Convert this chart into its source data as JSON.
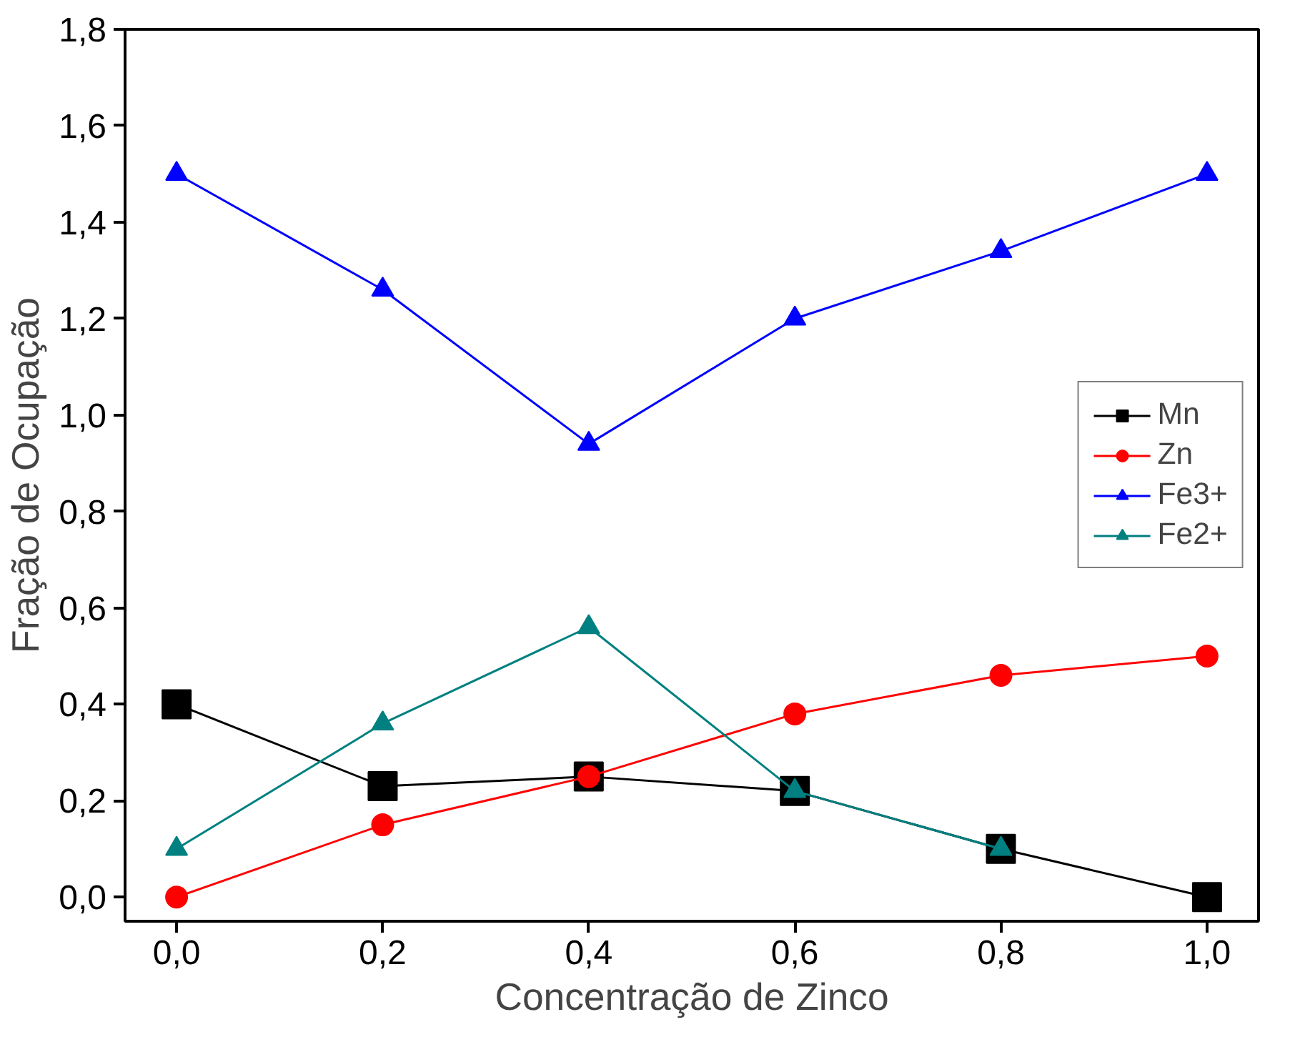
{
  "chart_data": {
    "type": "line",
    "xlabel": "Concentração de Zinco",
    "ylabel": "Fração de Ocupação",
    "x": [
      0.0,
      0.2,
      0.4,
      0.6,
      0.8,
      1.0
    ],
    "series": [
      {
        "name": "Mn",
        "color": "#000000",
        "marker": "square",
        "values": [
          0.4,
          0.23,
          0.25,
          0.22,
          0.1,
          0.0
        ]
      },
      {
        "name": "Zn",
        "color": "#ff0000",
        "marker": "circle",
        "values": [
          0.0,
          0.15,
          0.25,
          0.38,
          0.46,
          0.5
        ]
      },
      {
        "name": "Fe3+",
        "color": "#0000ff",
        "marker": "triangle",
        "values": [
          1.5,
          1.26,
          0.94,
          1.2,
          1.34,
          1.5
        ]
      },
      {
        "name": "Fe2+",
        "color": "#008080",
        "marker": "triangle",
        "values": [
          0.1,
          0.36,
          0.56,
          0.22,
          0.1,
          null
        ]
      }
    ],
    "xlim": [
      -0.05,
      1.05
    ],
    "ylim": [
      -0.05,
      1.8
    ],
    "xticks": [
      {
        "value": 0.0,
        "label": "0,0"
      },
      {
        "value": 0.2,
        "label": "0,2"
      },
      {
        "value": 0.4,
        "label": "0,4"
      },
      {
        "value": 0.6,
        "label": "0,6"
      },
      {
        "value": 0.8,
        "label": "0,8"
      },
      {
        "value": 1.0,
        "label": "1,0"
      }
    ],
    "yticks": [
      {
        "value": 0.0,
        "label": "0,0"
      },
      {
        "value": 0.2,
        "label": "0,2"
      },
      {
        "value": 0.4,
        "label": "0,4"
      },
      {
        "value": 0.6,
        "label": "0,6"
      },
      {
        "value": 0.8,
        "label": "0,8"
      },
      {
        "value": 1.0,
        "label": "1,0"
      },
      {
        "value": 1.2,
        "label": "1,2"
      },
      {
        "value": 1.4,
        "label": "1,4"
      },
      {
        "value": 1.6,
        "label": "1,6"
      },
      {
        "value": 1.8,
        "label": "1,8"
      }
    ],
    "grid": false,
    "legend": "right",
    "line_style": "solid"
  }
}
